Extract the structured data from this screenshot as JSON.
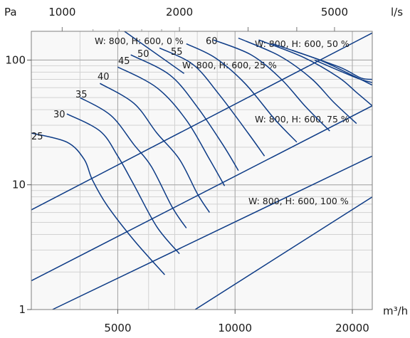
{
  "chart_data": {
    "type": "line",
    "x_scale": "log",
    "y_scale": "log",
    "grid": true,
    "xlim": [
      3000,
      22500
    ],
    "ylim": [
      1,
      170
    ],
    "y_label": "Pa",
    "x_bottom_label": "m³/h",
    "x_top_label": "l/s",
    "y_ticks": [
      {
        "value": 1,
        "label": "1"
      },
      {
        "value": 10,
        "label": "10"
      },
      {
        "value": 100,
        "label": "100"
      }
    ],
    "x_bottom_ticks": [
      {
        "value": 5000,
        "label": "5000"
      },
      {
        "value": 10000,
        "label": "10000"
      },
      {
        "value": 20000,
        "label": "20000"
      }
    ],
    "x_top_ticks": [
      {
        "value": 3600,
        "label": "1000"
      },
      {
        "value": 7200,
        "label": "2000"
      },
      {
        "value": 18000,
        "label": "5000"
      }
    ],
    "damper_lines": [
      {
        "name": "W: 800, H: 600, 0 %",
        "x": [
          5200,
          7400
        ],
        "y": [
          170,
          78
        ]
      },
      {
        "name": "W: 800, H: 600, 25 %",
        "x": [
          3000,
          22500
        ],
        "y": [
          6.3,
          165
        ]
      },
      {
        "name": "W: 800, H: 600, 50 %",
        "x": [
          3000,
          22500
        ],
        "y": [
          1.7,
          43
        ]
      },
      {
        "name": "W: 800, H: 600, 75 %",
        "x": [
          3400,
          22500
        ],
        "y": [
          1.0,
          17
        ]
      },
      {
        "name": "W: 800, H: 600, 100 %",
        "x": [
          7900,
          22500
        ],
        "y": [
          1.0,
          8.0
        ]
      }
    ],
    "sound_levels": [
      {
        "name": "25",
        "x": [
          3000,
          3700,
          4100,
          4300,
          4700,
          5500,
          6600
        ],
        "y": [
          26,
          22,
          16,
          11,
          6.8,
          3.6,
          1.9
        ]
      },
      {
        "name": "30",
        "x": [
          3700,
          4500,
          5000,
          5500,
          6300,
          7200
        ],
        "y": [
          37,
          27,
          17,
          10,
          4.6,
          2.8
        ]
      },
      {
        "name": "35",
        "x": [
          4000,
          4800,
          5500,
          6100,
          6900,
          7500
        ],
        "y": [
          50,
          36,
          21,
          14,
          6.6,
          4.5
        ]
      },
      {
        "name": "40",
        "x": [
          4500,
          5500,
          6300,
          7200,
          8000,
          8600
        ],
        "y": [
          65,
          45,
          26,
          16,
          8.5,
          6.0
        ]
      },
      {
        "name": "45",
        "x": [
          5000,
          6300,
          7500,
          8600,
          9400
        ],
        "y": [
          88,
          60,
          33,
          16,
          9.8
        ]
      },
      {
        "name": "50",
        "x": [
          5400,
          6800,
          8000,
          9300,
          10200
        ],
        "y": [
          110,
          76,
          42,
          21,
          13
        ]
      },
      {
        "name": "55",
        "x": [
          6400,
          7800,
          9100,
          10800,
          11900
        ],
        "y": [
          125,
          92,
          53,
          26,
          17
        ]
      },
      {
        "name": "60",
        "x": [
          7500,
          8900,
          10600,
          12700,
          14400
        ],
        "y": [
          135,
          104,
          65,
          33,
          22
        ]
      },
      {
        "name": "",
        "x": [
          8800,
          11000,
          13100,
          15200,
          17500
        ],
        "y": [
          145,
          110,
          71,
          42,
          27
        ]
      },
      {
        "name": "",
        "x": [
          10200,
          13000,
          15700,
          17900,
          20500
        ],
        "y": [
          150,
          108,
          71,
          46,
          31
        ]
      },
      {
        "name": "",
        "x": [
          11500,
          15000,
          18400,
          20500,
          22500
        ],
        "y": [
          145,
          105,
          73,
          55,
          43
        ]
      },
      {
        "name": "",
        "x": [
          12500,
          16500,
          19900,
          22500
        ],
        "y": [
          135,
          100,
          76,
          63
        ]
      },
      {
        "name": "",
        "x": [
          14000,
          18500,
          21000,
          22500
        ],
        "y": [
          120,
          88,
          72,
          70
        ]
      },
      {
        "name": "",
        "x": [
          16000,
          20500,
          22500
        ],
        "y": [
          100,
          72,
          66
        ]
      }
    ]
  }
}
